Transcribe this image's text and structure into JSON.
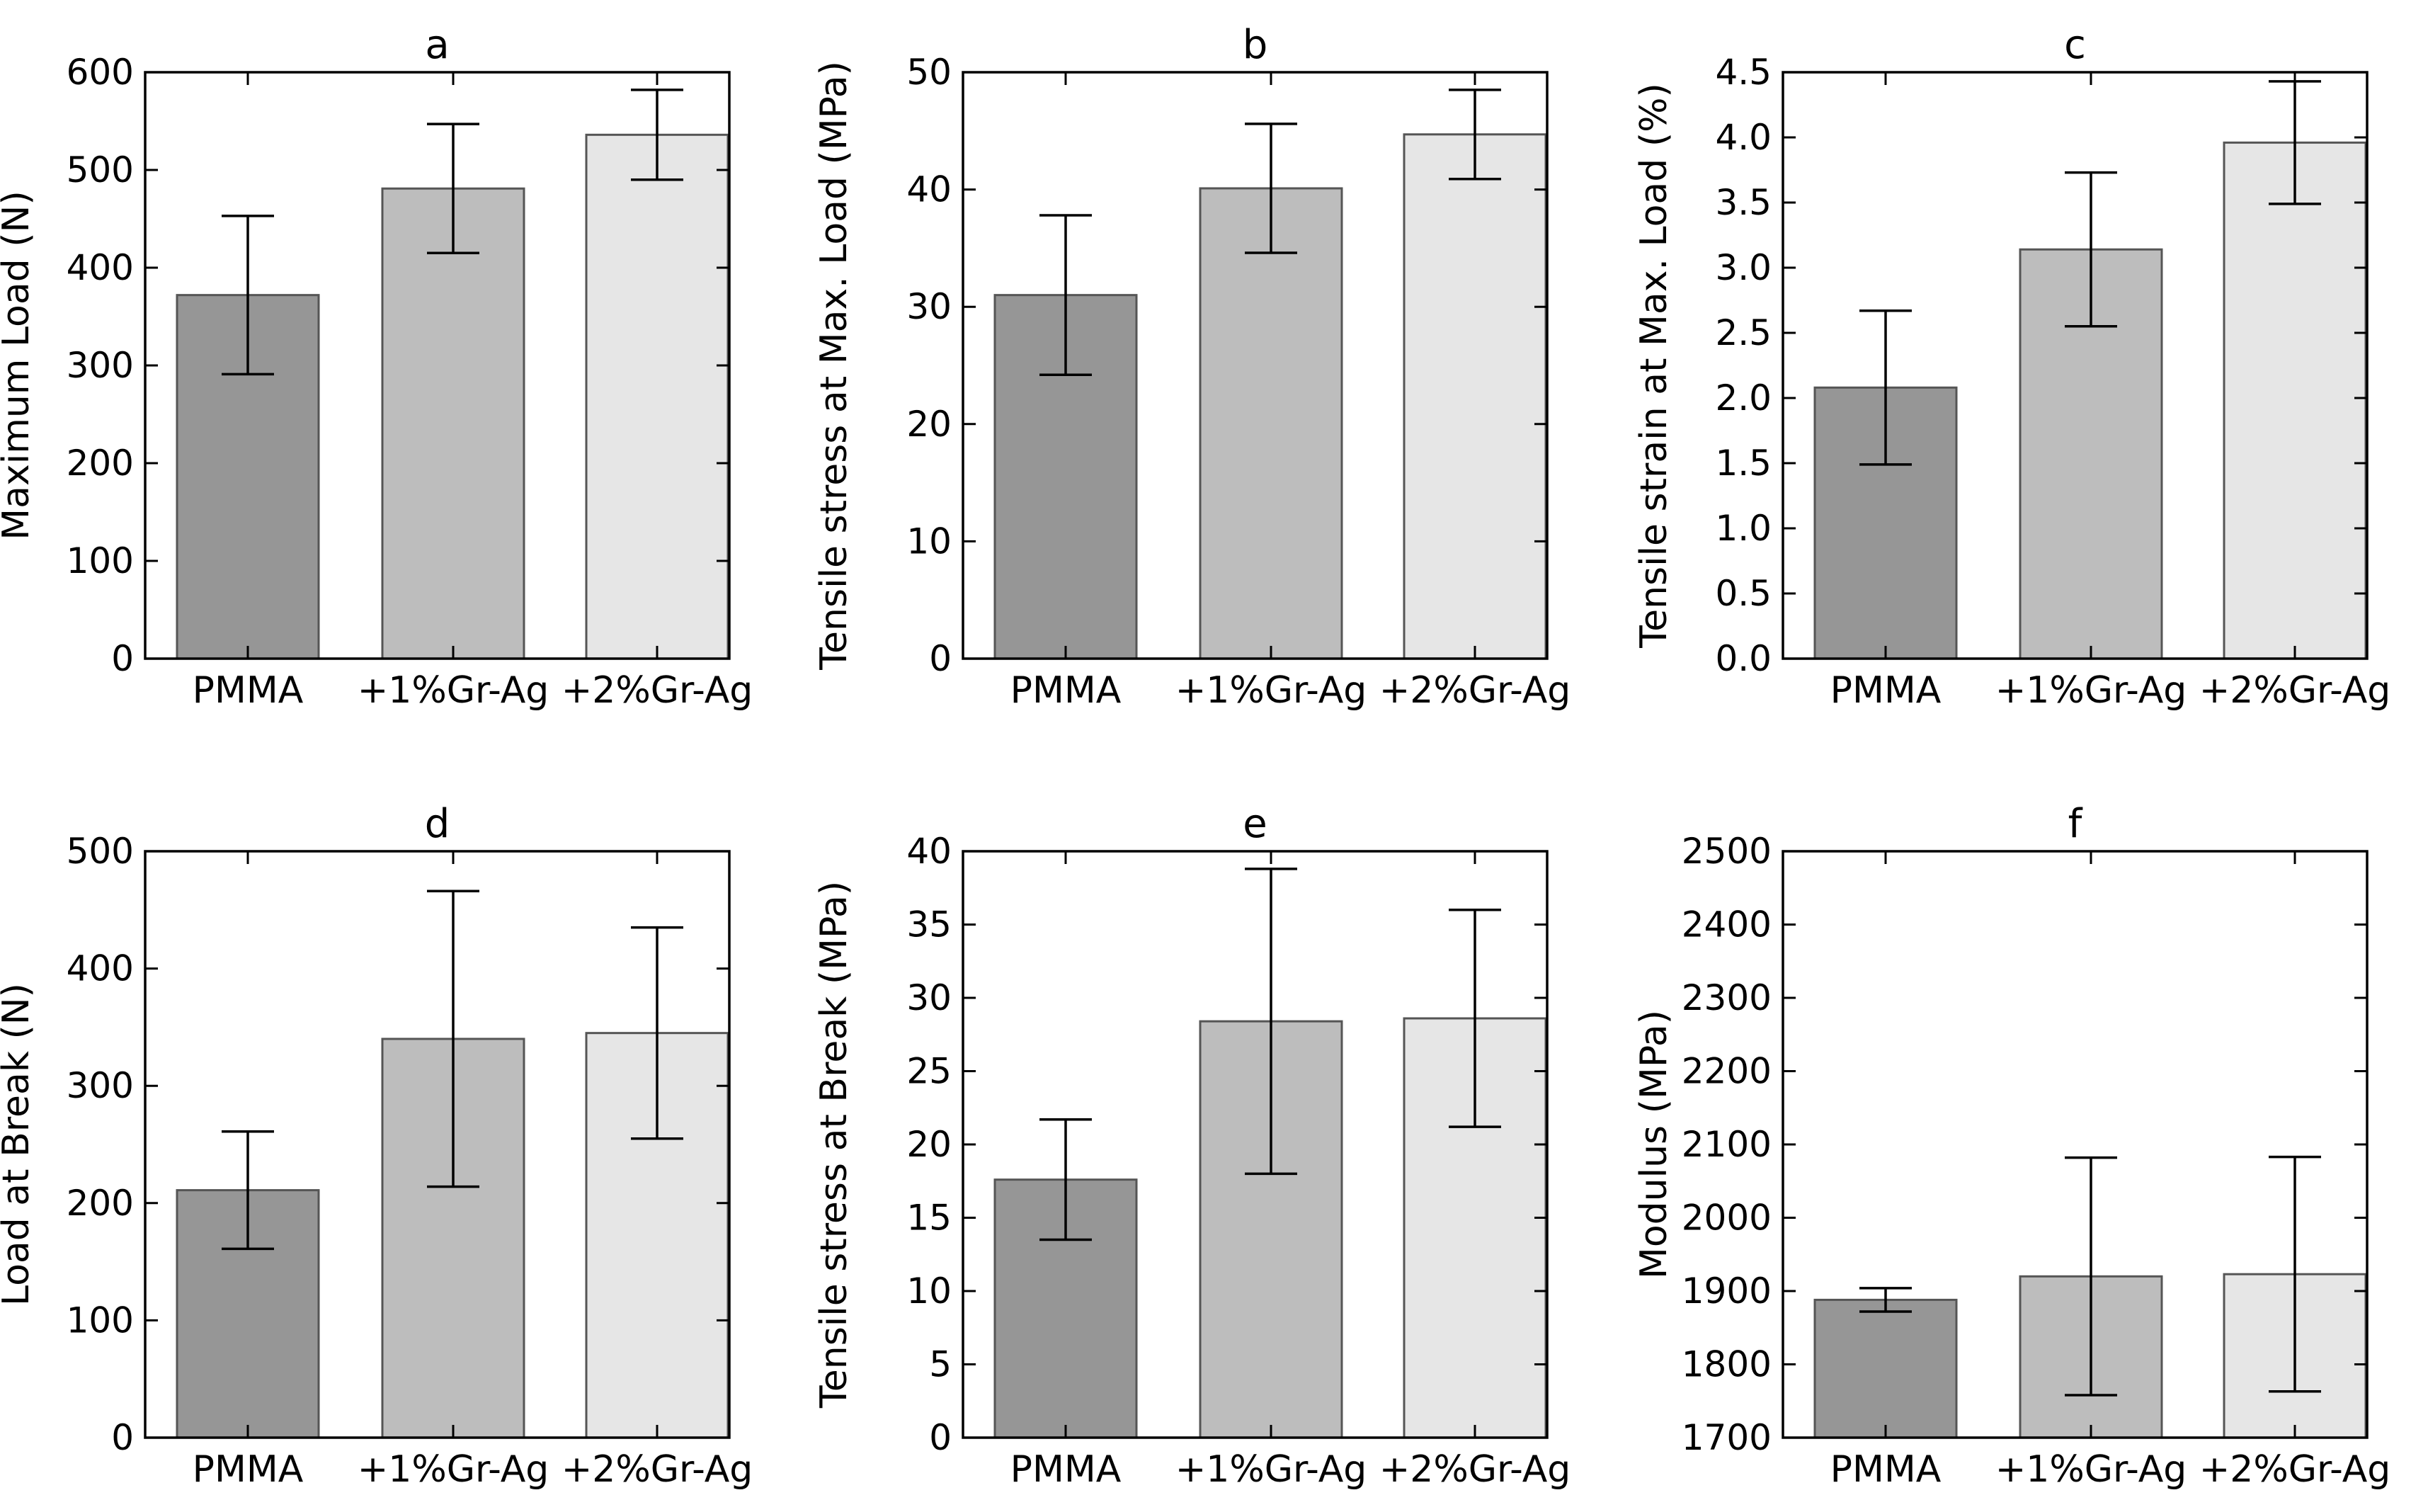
{
  "colors": {
    "bar": [
      "#969696",
      "#bdbdbd",
      "#e6e6e6"
    ],
    "axis": "#000000",
    "edge": "#555555"
  },
  "chart_data": [
    {
      "type": "bar",
      "panel": "a",
      "title": "a",
      "xlabel": "",
      "ylabel": "Maximum Load (N)",
      "categories": [
        "PMMA",
        "+1%Gr-Ag",
        "+2%Gr-Ag"
      ],
      "values": [
        372,
        481,
        536
      ],
      "errors": [
        81,
        66,
        46
      ],
      "ylim": [
        0,
        600
      ],
      "yticks": [
        0,
        100,
        200,
        300,
        400,
        500,
        600
      ],
      "ytick_labels": [
        "0",
        "100",
        "200",
        "300",
        "400",
        "500",
        "600"
      ]
    },
    {
      "type": "bar",
      "panel": "b",
      "title": "b",
      "xlabel": "",
      "ylabel": "Tensile stress at Max. Load (MPa)",
      "categories": [
        "PMMA",
        "+1%Gr-Ag",
        "+2%Gr-Ag"
      ],
      "values": [
        31.0,
        40.1,
        44.7
      ],
      "errors": [
        6.8,
        5.5,
        3.8
      ],
      "ylim": [
        0,
        50
      ],
      "yticks": [
        0,
        10,
        20,
        30,
        40,
        50
      ],
      "ytick_labels": [
        "0",
        "10",
        "20",
        "30",
        "40",
        "50"
      ]
    },
    {
      "type": "bar",
      "panel": "c",
      "title": "c",
      "xlabel": "",
      "ylabel": "Tensile strain at Max. Load (%)",
      "categories": [
        "PMMA",
        "+1%Gr-Ag",
        "+2%Gr-Ag"
      ],
      "values": [
        2.08,
        3.14,
        3.96
      ],
      "errors": [
        0.59,
        0.59,
        0.47
      ],
      "ylim": [
        0,
        4.5
      ],
      "yticks": [
        0,
        0.5,
        1.0,
        1.5,
        2.0,
        2.5,
        3.0,
        3.5,
        4.0,
        4.5
      ],
      "ytick_labels": [
        "0.0",
        "0.5",
        "1.0",
        "1.5",
        "2.0",
        "2.5",
        "3.0",
        "3.5",
        "4.0",
        "4.5"
      ]
    },
    {
      "type": "bar",
      "panel": "d",
      "title": "d",
      "xlabel": "",
      "ylabel": "Load at Break (N)",
      "categories": [
        "PMMA",
        "+1%Gr-Ag",
        "+2%Gr-Ag"
      ],
      "values": [
        211,
        340,
        345
      ],
      "errors": [
        50,
        126,
        90
      ],
      "ylim": [
        0,
        500
      ],
      "yticks": [
        0,
        100,
        200,
        300,
        400,
        500
      ],
      "ytick_labels": [
        "0",
        "100",
        "200",
        "300",
        "400",
        "500"
      ]
    },
    {
      "type": "bar",
      "panel": "e",
      "title": "e",
      "xlabel": "",
      "ylabel": "Tensile stress at Break (MPa)",
      "categories": [
        "PMMA",
        "+1%Gr-Ag",
        "+2%Gr-Ag"
      ],
      "values": [
        17.6,
        28.4,
        28.6
      ],
      "errors": [
        4.1,
        10.4,
        7.4
      ],
      "ylim": [
        0,
        40
      ],
      "yticks": [
        0,
        5,
        10,
        15,
        20,
        25,
        30,
        35,
        40
      ],
      "ytick_labels": [
        "0",
        "5",
        "10",
        "15",
        "20",
        "25",
        "30",
        "35",
        "40"
      ]
    },
    {
      "type": "bar",
      "panel": "f",
      "title": "f",
      "xlabel": "",
      "ylabel": "Modulus (MPa)",
      "categories": [
        "PMMA",
        "+1%Gr-Ag",
        "+2%Gr-Ag"
      ],
      "values": [
        1888,
        1920,
        1923
      ],
      "errors": [
        16,
        162,
        160
      ],
      "ylim": [
        1700,
        2500
      ],
      "yticks": [
        1700,
        1800,
        1900,
        2000,
        2100,
        2200,
        2300,
        2400,
        2500
      ],
      "ytick_labels": [
        "1700",
        "1800",
        "1900",
        "2000",
        "2100",
        "2200",
        "2300",
        "2400",
        "2500"
      ]
    }
  ]
}
